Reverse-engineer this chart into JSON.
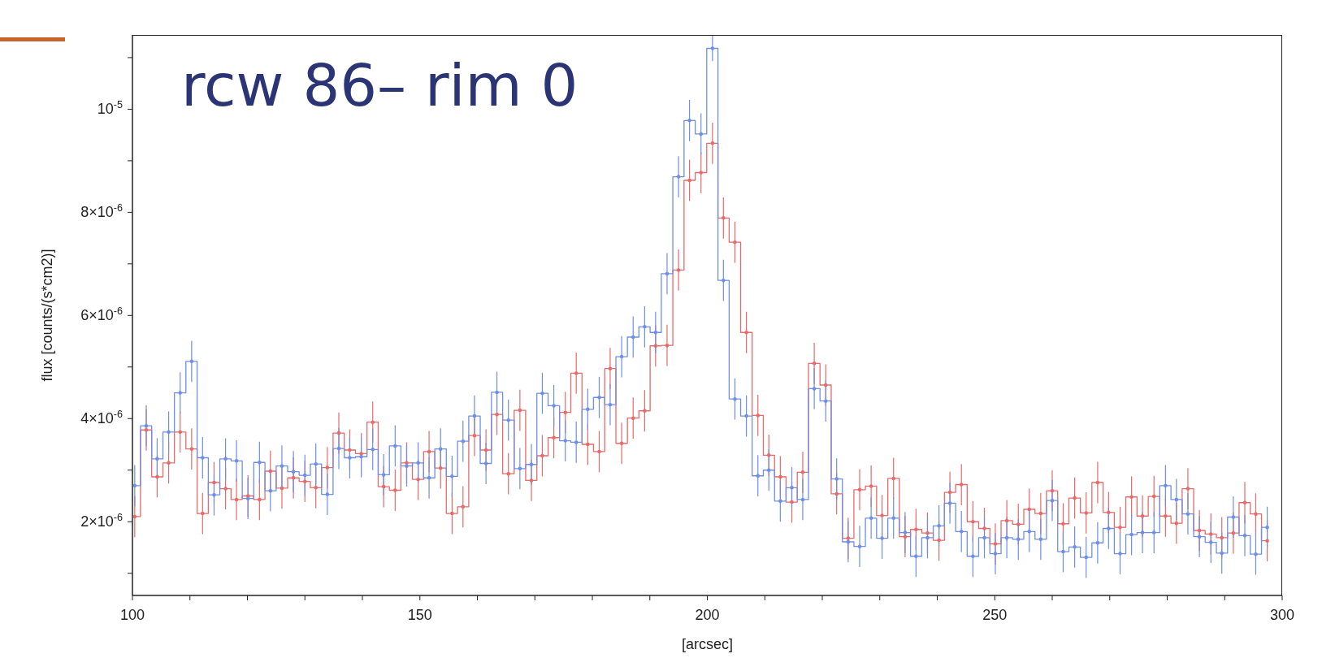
{
  "chart_data": {
    "type": "step",
    "title": "rcw 86– rim 0",
    "xlabel": "[arcsec]",
    "ylabel": "flux [counts/(s*cm2)]",
    "x": [
      100.4,
      102.4,
      104.3,
      106.3,
      108.3,
      110.3,
      112.2,
      114.2,
      116.2,
      118.1,
      120.1,
      122.1,
      124.0,
      126.0,
      128.0,
      130.0,
      131.9,
      133.9,
      135.9,
      137.8,
      139.8,
      141.8,
      143.7,
      145.7,
      147.7,
      149.7,
      151.6,
      153.6,
      155.6,
      157.5,
      159.5,
      161.5,
      163.4,
      165.4,
      167.4,
      169.4,
      171.3,
      173.3,
      175.3,
      177.2,
      179.2,
      181.2,
      183.1,
      185.1,
      187.1,
      189.1,
      191.0,
      193.0,
      195.0,
      196.9,
      198.9,
      200.9,
      202.8,
      204.8,
      206.8,
      208.8,
      210.7,
      212.7,
      214.7,
      216.6,
      218.6,
      220.6,
      222.5,
      224.5,
      226.5,
      228.5,
      230.4,
      232.4,
      234.4,
      236.3,
      238.3,
      240.3,
      242.2,
      244.2,
      246.2,
      248.2,
      250.1,
      252.1,
      254.1,
      256.0,
      258.0,
      260.0,
      261.9,
      263.9,
      265.9,
      267.9,
      269.8,
      271.8,
      273.8,
      275.7,
      277.7,
      279.7,
      281.6,
      283.6,
      285.6,
      287.6,
      289.5,
      291.5,
      293.5,
      295.4,
      297.4
    ],
    "series": [
      {
        "color": "#e86a6a",
        "values": [
          2.1e-06,
          3.78e-06,
          2.87e-06,
          3.14e-06,
          3.74e-06,
          3.41e-06,
          2.16e-06,
          2.76e-06,
          2.64e-06,
          2.43e-06,
          2.5e-06,
          2.43e-06,
          2.98e-06,
          2.65e-06,
          2.85e-06,
          2.78e-06,
          2.66e-06,
          3.05e-06,
          3.72e-06,
          3.39e-06,
          3.32e-06,
          3.93e-06,
          2.68e-06,
          2.61e-06,
          3.14e-06,
          2.82e-06,
          3.36e-06,
          3.04e-06,
          2.16e-06,
          2.29e-06,
          3.67e-06,
          3.39e-06,
          4.08e-06,
          2.93e-06,
          4.16e-06,
          2.8e-06,
          3.28e-06,
          3.63e-06,
          4.12e-06,
          4.88e-06,
          3.5e-06,
          3.36e-06,
          4.97e-06,
          3.52e-06,
          4.01e-06,
          4.15e-06,
          5.41e-06,
          5.42e-06,
          6.88e-06,
          8.62e-06,
          8.77e-06,
          9.34e-06,
          7.89e-06,
          7.42e-06,
          5.67e-06,
          4.06e-06,
          3.29e-06,
          2.87e-06,
          2.38e-06,
          2.96e-06,
          5.07e-06,
          4.65e-06,
          2.54e-06,
          1.68e-06,
          2.62e-06,
          2.69e-06,
          2.12e-06,
          2.84e-06,
          1.71e-06,
          1.85e-06,
          1.78e-06,
          1.64e-06,
          2.57e-06,
          2.72e-06,
          2e-06,
          1.87e-06,
          1.57e-06,
          2.02e-06,
          1.95e-06,
          2.24e-06,
          2.16e-06,
          2.6e-06,
          1.96e-06,
          2.46e-06,
          2.17e-06,
          2.76e-06,
          2.18e-06,
          1.89e-06,
          2.48e-06,
          2.11e-06,
          2.49e-06,
          2.11e-06,
          1.97e-06,
          2.64e-06,
          1.83e-06,
          1.76e-06,
          1.69e-06,
          1.78e-06,
          2.37e-06,
          2.15e-06,
          1.63e-06
        ],
        "errors": [
          4e-07,
          4e-07,
          4e-07,
          4e-07,
          4e-07,
          4e-07,
          4e-07,
          4e-07,
          4e-07,
          4e-07,
          4e-07,
          4e-07,
          4e-07,
          4e-07,
          4e-07,
          4e-07,
          4e-07,
          4e-07,
          4e-07,
          4e-07,
          4e-07,
          4e-07,
          4e-07,
          4e-07,
          4e-07,
          4e-07,
          4e-07,
          4e-07,
          4e-07,
          4e-07,
          4e-07,
          4e-07,
          4e-07,
          4e-07,
          4e-07,
          4e-07,
          4e-07,
          4e-07,
          4e-07,
          4e-07,
          4e-07,
          4e-07,
          4e-07,
          4e-07,
          4e-07,
          4e-07,
          4e-07,
          4e-07,
          4e-07,
          4e-07,
          4e-07,
          4e-07,
          4e-07,
          4e-07,
          4e-07,
          4e-07,
          4e-07,
          4e-07,
          4e-07,
          4e-07,
          4e-07,
          4e-07,
          4e-07,
          4e-07,
          4e-07,
          4e-07,
          4e-07,
          4e-07,
          4e-07,
          4e-07,
          4e-07,
          4e-07,
          4e-07,
          4e-07,
          4e-07,
          4e-07,
          4e-07,
          4e-07,
          4e-07,
          4e-07,
          4e-07,
          4e-07,
          4e-07,
          4e-07,
          4e-07,
          4e-07,
          4e-07,
          4e-07,
          4e-07,
          4e-07,
          4e-07,
          4e-07,
          4e-07,
          4e-07,
          4e-07,
          4e-07,
          4e-07,
          4e-07,
          4e-07,
          4e-07,
          4e-07
        ]
      },
      {
        "color": "#6f8fe6",
        "values": [
          2.7e-06,
          3.86e-06,
          3.22e-06,
          3.74e-06,
          4.5e-06,
          5.11e-06,
          3.24e-06,
          2.52e-06,
          3.22e-06,
          3.18e-06,
          2.45e-06,
          3.15e-06,
          2.6e-06,
          3.08e-06,
          2.97e-06,
          2.9e-06,
          3.12e-06,
          2.53e-06,
          3.42e-06,
          3.24e-06,
          3.26e-06,
          3.4e-06,
          2.91e-06,
          3.47e-06,
          3.08e-06,
          3.14e-06,
          2.85e-06,
          3.41e-06,
          2.88e-06,
          3.56e-06,
          4.05e-06,
          3.13e-06,
          4.51e-06,
          3.97e-06,
          3.03e-06,
          3.11e-06,
          4.49e-06,
          4.25e-06,
          3.57e-06,
          3.54e-06,
          4.18e-06,
          4.41e-06,
          4.27e-06,
          5.2e-06,
          5.58e-06,
          5.78e-06,
          5.67e-06,
          6.81e-06,
          8.69e-06,
          9.78e-06,
          9.52e-06,
          1.118e-05,
          6.68e-06,
          4.38e-06,
          4.05e-06,
          2.89e-06,
          3e-06,
          2.4e-06,
          2.66e-06,
          2.43e-06,
          4.58e-06,
          4.34e-06,
          2.83e-06,
          1.61e-06,
          1.52e-06,
          2.07e-06,
          1.68e-06,
          2.07e-06,
          1.79e-06,
          1.33e-06,
          1.69e-06,
          1.92e-06,
          2.36e-06,
          1.81e-06,
          1.33e-06,
          1.69e-06,
          1.38e-06,
          1.69e-06,
          1.66e-06,
          1.81e-06,
          1.66e-06,
          2.41e-06,
          1.42e-06,
          1.51e-06,
          1.31e-06,
          1.59e-06,
          1.87e-06,
          1.38e-06,
          1.75e-06,
          1.79e-06,
          1.79e-06,
          2.7e-06,
          2.43e-06,
          2.15e-06,
          1.71e-06,
          1.6e-06,
          1.39e-06,
          2.09e-06,
          1.73e-06,
          1.37e-06,
          1.89e-06
        ],
        "errors": [
          4e-07,
          4e-07,
          4e-07,
          4e-07,
          4e-07,
          4e-07,
          4e-07,
          4e-07,
          4e-07,
          4e-07,
          4e-07,
          4e-07,
          4e-07,
          4e-07,
          4e-07,
          4e-07,
          4e-07,
          4e-07,
          4e-07,
          4e-07,
          4e-07,
          4e-07,
          4e-07,
          4e-07,
          4e-07,
          4e-07,
          4e-07,
          4e-07,
          4e-07,
          4e-07,
          4e-07,
          4e-07,
          4e-07,
          4e-07,
          4e-07,
          4e-07,
          4e-07,
          4e-07,
          4e-07,
          4e-07,
          4e-07,
          4e-07,
          4e-07,
          4e-07,
          4e-07,
          4e-07,
          4e-07,
          4e-07,
          4e-07,
          4e-07,
          4e-07,
          2.5e-07,
          4e-07,
          4e-07,
          4e-07,
          4e-07,
          4e-07,
          4e-07,
          4e-07,
          4e-07,
          4e-07,
          4e-07,
          4e-07,
          4e-07,
          4e-07,
          4e-07,
          4e-07,
          4e-07,
          4e-07,
          4e-07,
          4e-07,
          4e-07,
          4e-07,
          4e-07,
          4e-07,
          4e-07,
          4e-07,
          4e-07,
          4e-07,
          4e-07,
          4e-07,
          4e-07,
          4e-07,
          4e-07,
          4e-07,
          4e-07,
          4e-07,
          4e-07,
          4e-07,
          4e-07,
          4e-07,
          4e-07,
          4e-07,
          4e-07,
          4e-07,
          4e-07,
          4e-07,
          4e-07,
          4e-07,
          4e-07,
          4e-07
        ]
      }
    ],
    "xlim": [
      100,
      300
    ],
    "xticks": [
      100,
      {
        "value": 110,
        "label": null
      },
      {
        "value": 120,
        "label": null
      },
      {
        "value": 130,
        "label": null
      },
      {
        "value": 140,
        "label": null
      },
      150,
      {
        "value": 160,
        "label": null
      },
      {
        "value": 170,
        "label": null
      },
      {
        "value": 180,
        "label": null
      },
      {
        "value": 190,
        "label": null
      },
      200,
      {
        "value": 210,
        "label": null
      },
      {
        "value": 220,
        "label": null
      },
      {
        "value": 230,
        "label": null
      },
      {
        "value": 240,
        "label": null
      },
      250,
      {
        "value": 260,
        "label": null
      },
      {
        "value": 270,
        "label": null
      },
      {
        "value": 280,
        "label": null
      },
      {
        "value": 290,
        "label": null
      },
      300
    ],
    "ylim": [
      5.7e-07,
      1.144e-05
    ],
    "yticks": [
      {
        "value": 1e-06,
        "label": null
      },
      {
        "value": 2e-06,
        "label": "2×10$^{-6}$"
      },
      {
        "value": 3e-06,
        "label": null
      },
      {
        "value": 4e-06,
        "label": "4×10$^{-6}$"
      },
      {
        "value": 5e-06,
        "label": null
      },
      {
        "value": 6e-06,
        "label": "6×10$^{-6}$"
      },
      {
        "value": 7e-06,
        "label": null
      },
      {
        "value": 8e-06,
        "label": "8×10$^{-6}$"
      },
      {
        "value": 9e-06,
        "label": null
      },
      {
        "value": 1e-05,
        "label": "10$^{-5}$"
      },
      {
        "value": 1.1e-05,
        "label": null
      }
    ],
    "grid": false,
    "legend": false,
    "marker": "circle"
  }
}
